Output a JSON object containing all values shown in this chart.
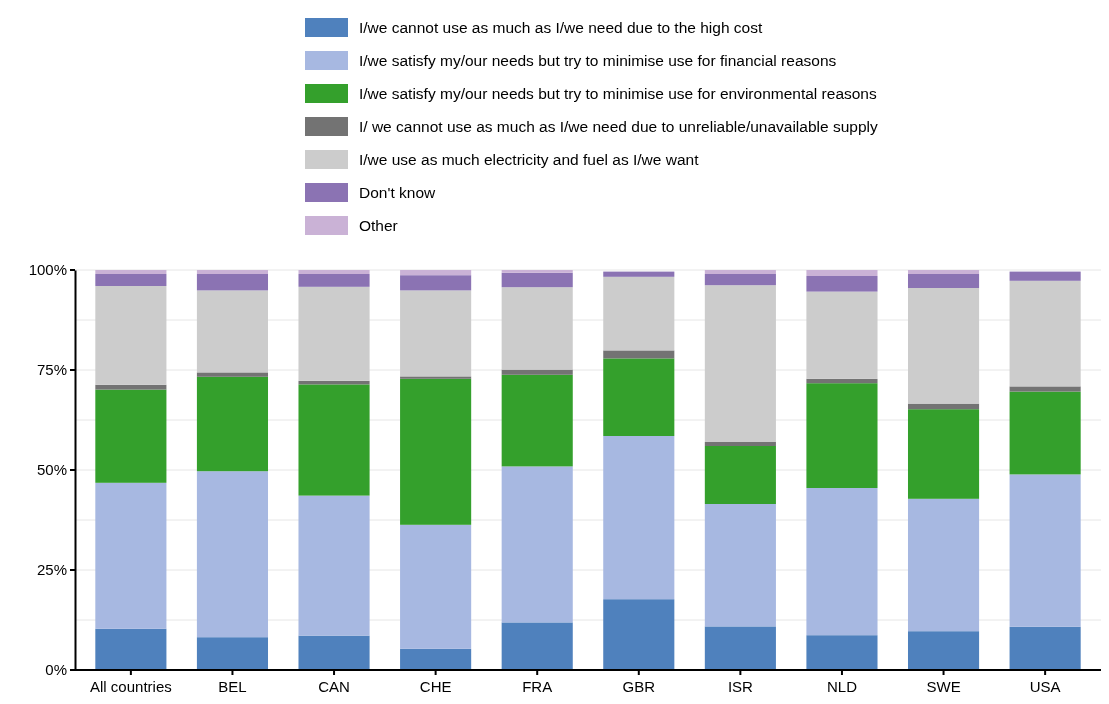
{
  "chart_data": {
    "type": "bar",
    "stacked": true,
    "categories": [
      "All countries",
      "BEL",
      "CAN",
      "CHE",
      "FRA",
      "GBR",
      "ISR",
      "NLD",
      "SWE",
      "USA"
    ],
    "series": [
      {
        "name": "I/we cannot use as much as I/we need due to the high cost",
        "color": "#4f81bd",
        "values": [
          10.3,
          8.2,
          8.6,
          5.3,
          11.9,
          17.7,
          10.9,
          8.7,
          9.7,
          10.8
        ]
      },
      {
        "name": "I/we satisfy my/our needs but try to minimise use for financial reasons",
        "color": "#a7b8e1",
        "values": [
          36.5,
          41.5,
          35.0,
          31.0,
          39.0,
          40.8,
          30.6,
          36.8,
          33.1,
          38.1
        ]
      },
      {
        "name": "I/we satisfy my/our needs but try to minimise use for environmental reasons",
        "color": "#34a02c",
        "values": [
          23.3,
          23.6,
          27.8,
          36.5,
          22.9,
          19.4,
          14.5,
          26.2,
          22.4,
          20.7
        ]
      },
      {
        "name": "I/ we cannot use as much as I/we need due to unreliable/unavailable supply",
        "color": "#737373",
        "values": [
          1.2,
          1.1,
          0.9,
          0.6,
          1.3,
          2.0,
          1.0,
          1.1,
          1.4,
          1.3
        ]
      },
      {
        "name": "I/we use as much electricity and fuel as I/we want",
        "color": "#cccccc",
        "values": [
          24.7,
          20.5,
          23.5,
          21.5,
          20.6,
          18.4,
          39.2,
          21.8,
          28.9,
          26.4
        ]
      },
      {
        "name": "Don't know",
        "color": "#8b73b3",
        "values": [
          3.0,
          4.1,
          3.2,
          3.8,
          3.6,
          1.3,
          2.8,
          3.9,
          3.5,
          2.3
        ]
      },
      {
        "name": "Other",
        "color": "#cab2d6",
        "values": [
          1.0,
          1.0,
          1.0,
          1.3,
          0.7,
          null,
          1.0,
          1.5,
          1.0,
          null
        ]
      }
    ],
    "ylim": [
      0,
      100
    ],
    "yticks": [
      {
        "value": 0,
        "label": "0%"
      },
      {
        "value": 12.5,
        "label": null
      },
      {
        "value": 25,
        "label": "25%"
      },
      {
        "value": 37.5,
        "label": null
      },
      {
        "value": 50,
        "label": "50%"
      },
      {
        "value": 62.5,
        "label": null
      },
      {
        "value": 75,
        "label": "75%"
      },
      {
        "value": 87.5,
        "label": null
      },
      {
        "value": 100,
        "label": "100%"
      }
    ],
    "grid": "y",
    "legend": "top"
  }
}
